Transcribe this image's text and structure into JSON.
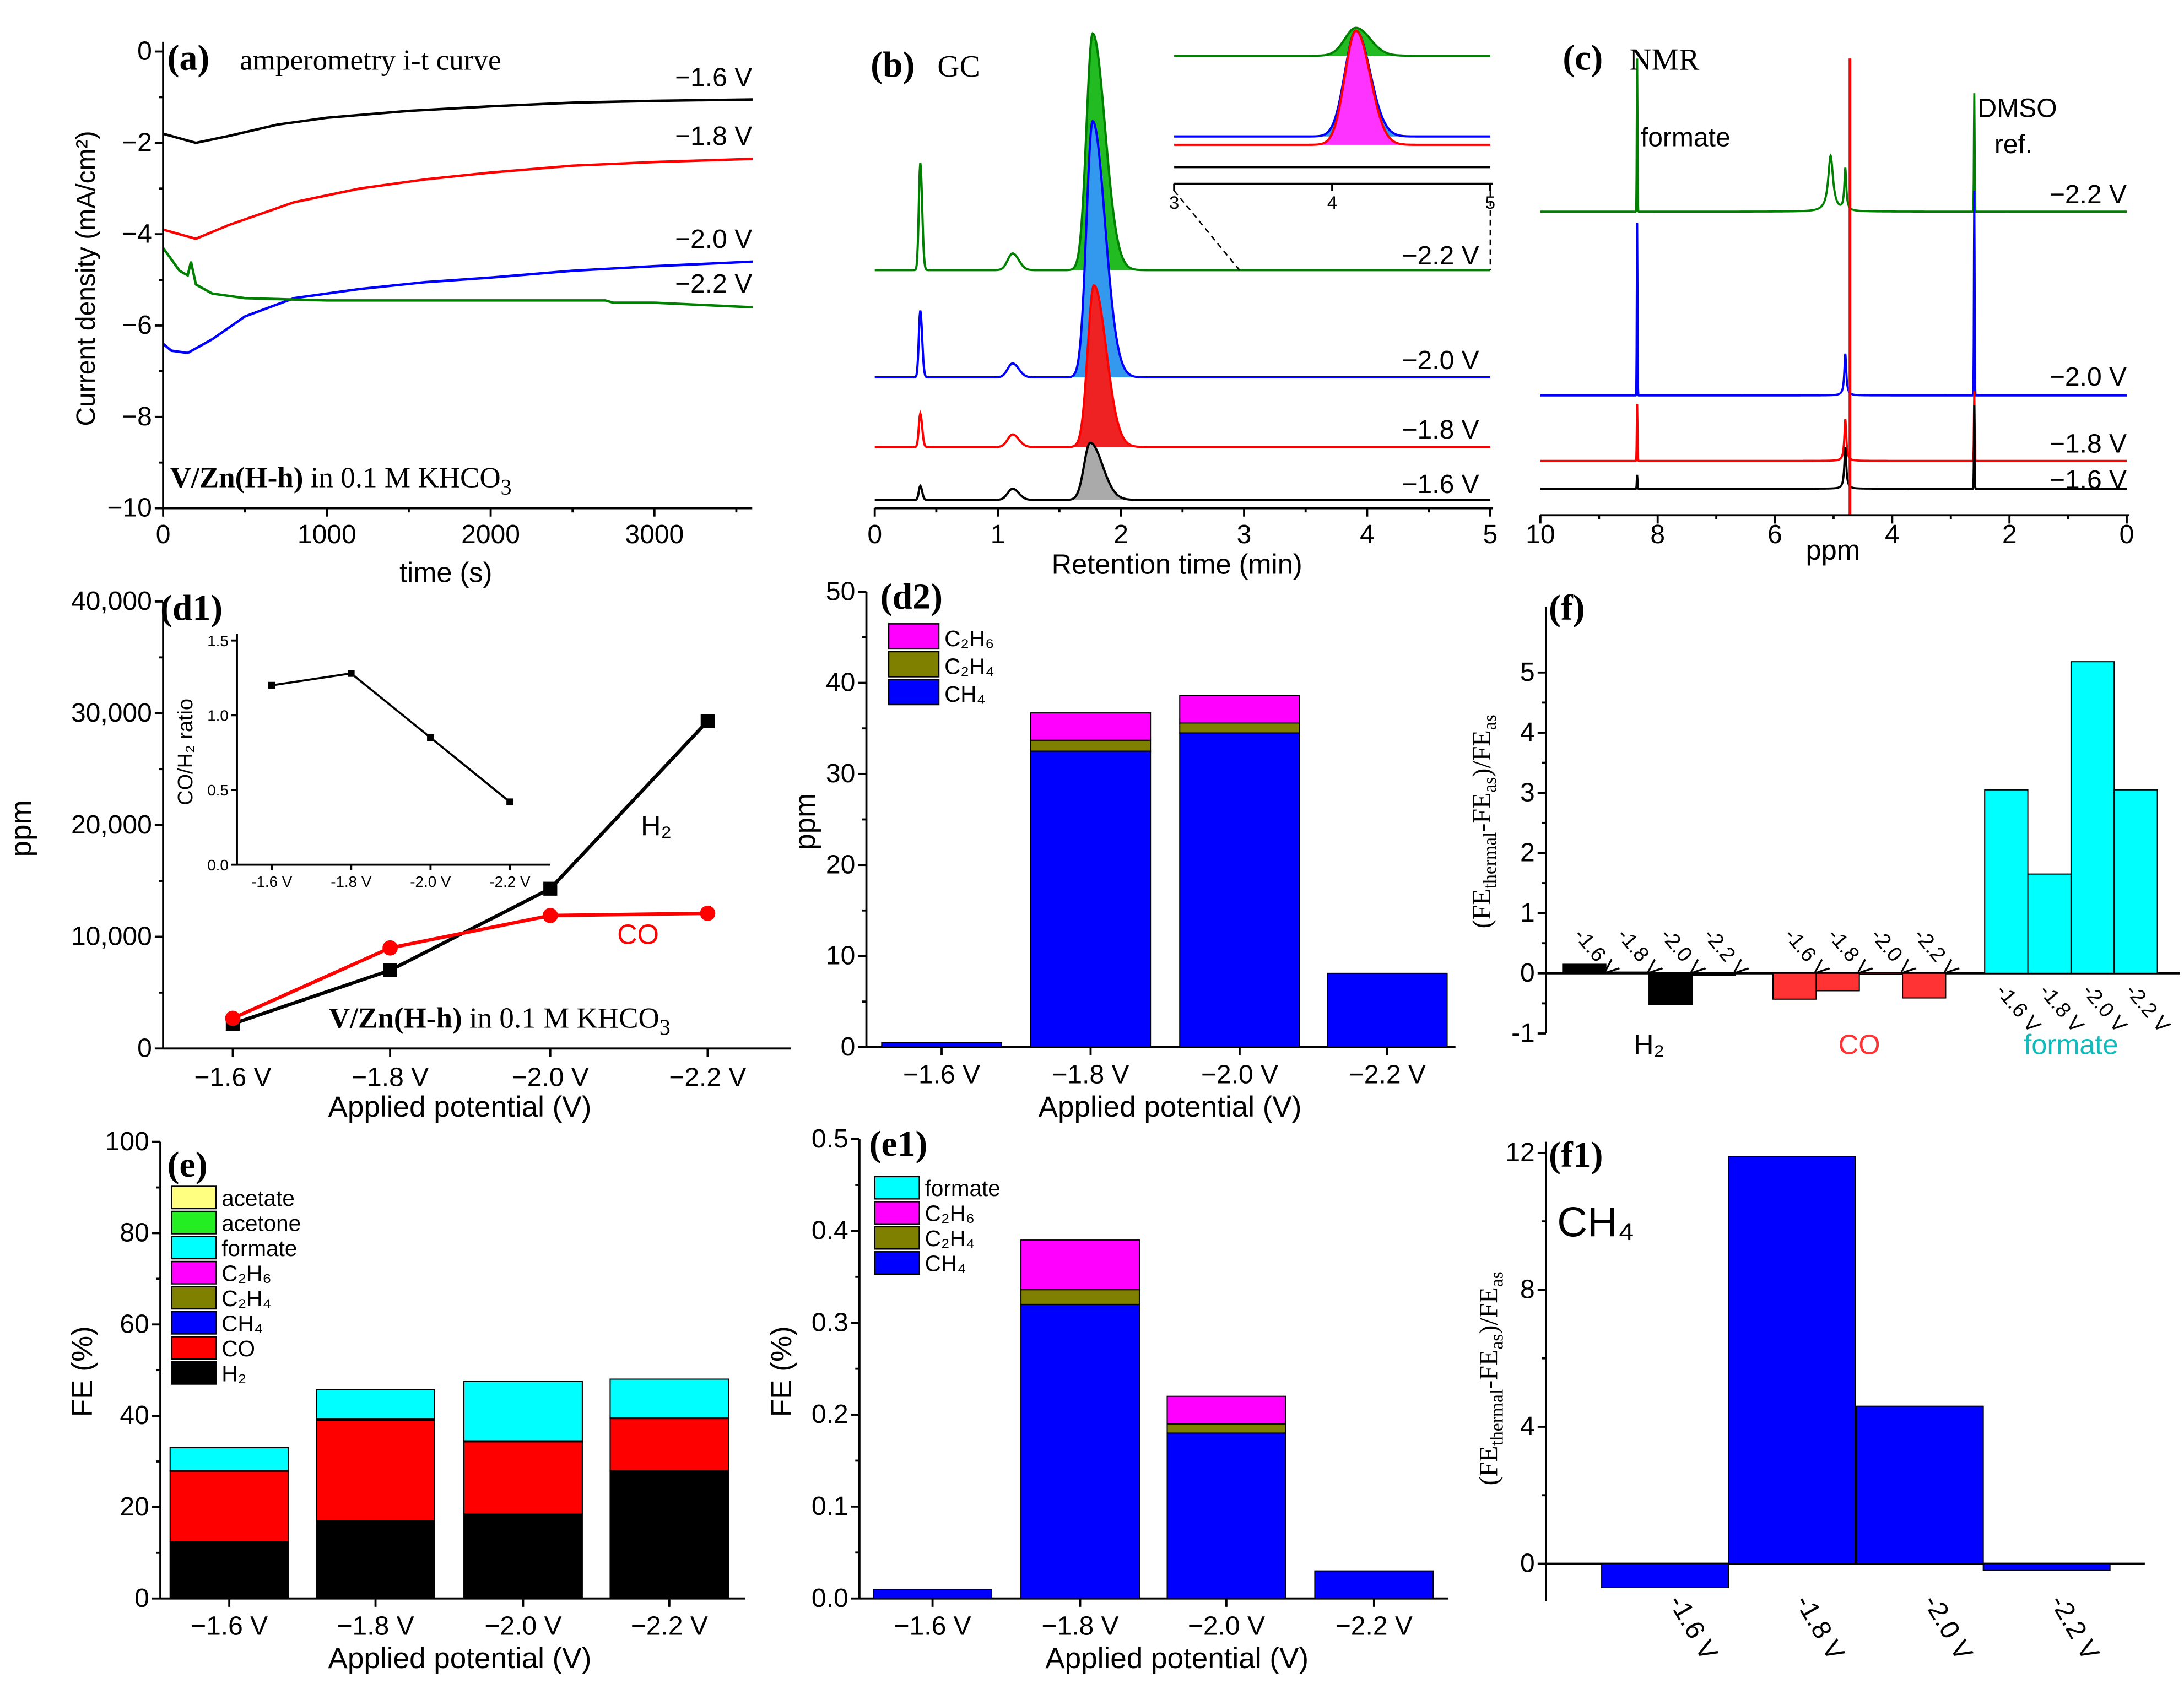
{
  "chart_data": [
    {
      "id": "a",
      "type": "line",
      "panel_label": "(a)",
      "title": "amperometry i-t curve",
      "xlabel": "time (s)",
      "ylabel": "Current density (mA/cm²)",
      "xlim": [
        0,
        3600
      ],
      "ylim": [
        -10,
        0
      ],
      "xticks": [
        0,
        1000,
        2000,
        3000
      ],
      "yticks": [
        0,
        -2,
        -4,
        -6,
        -8,
        -10
      ],
      "sample": {
        "bold": "V/Zn(H-h)",
        "text": " in 0.1 M KHCO",
        "sub": "3"
      },
      "series": [
        {
          "name": "−1.6 V",
          "color": "#000000",
          "x": [
            0,
            100,
            200,
            400,
            700,
            1000,
            1500,
            2000,
            2500,
            3000,
            3600
          ],
          "y": [
            -1.8,
            -1.9,
            -2.0,
            -1.85,
            -1.6,
            -1.45,
            -1.3,
            -1.2,
            -1.12,
            -1.08,
            -1.05
          ]
        },
        {
          "name": "−1.8 V",
          "color": "#ff0000",
          "x": [
            0,
            100,
            200,
            400,
            800,
            1200,
            1600,
            2000,
            2500,
            3000,
            3600
          ],
          "y": [
            -3.9,
            -4.0,
            -4.1,
            -3.8,
            -3.3,
            -3.0,
            -2.8,
            -2.65,
            -2.5,
            -2.42,
            -2.35
          ]
        },
        {
          "name": "−2.0 V",
          "color": "#0000ff",
          "x": [
            0,
            50,
            150,
            300,
            500,
            800,
            1200,
            1600,
            2000,
            2500,
            3000,
            3600
          ],
          "y": [
            -6.4,
            -6.55,
            -6.6,
            -6.3,
            -5.8,
            -5.4,
            -5.2,
            -5.05,
            -4.95,
            -4.8,
            -4.7,
            -4.6
          ]
        },
        {
          "name": "−2.2 V",
          "color": "#008000",
          "x": [
            0,
            100,
            150,
            170,
            200,
            300,
            500,
            1000,
            2000,
            2700,
            2750,
            3000,
            3600
          ],
          "y": [
            -4.3,
            -4.8,
            -4.9,
            -4.6,
            -5.1,
            -5.3,
            -5.4,
            -5.45,
            -5.45,
            -5.45,
            -5.5,
            -5.5,
            -5.6
          ]
        }
      ]
    },
    {
      "id": "b",
      "type": "line",
      "panel_label": "(b)",
      "title": "GC",
      "xlabel": "Retention time (min)",
      "xlim": [
        0,
        5
      ],
      "xticks": [
        0,
        1,
        2,
        3,
        4,
        5
      ],
      "inset": {
        "xlim": [
          3,
          5
        ],
        "xticks": [
          3,
          4,
          5
        ]
      },
      "series": [
        {
          "name": "−2.2 V",
          "color": "#008000",
          "fill": "#22bb22",
          "peaks_min": [
            0.37,
            1.12,
            1.77
          ],
          "intensity_au": [
            77,
            12,
            170
          ],
          "inset_peak_au": 20,
          "inset_fill": "#22bb22"
        },
        {
          "name": "−2.0 V",
          "color": "#0000ff",
          "fill": "#3399ee",
          "peaks_min": [
            0.37,
            1.12,
            1.77
          ],
          "intensity_au": [
            48,
            10,
            184
          ],
          "inset_peak_au": 76,
          "inset_fill": "#3399ee"
        },
        {
          "name": "−1.8 V",
          "color": "#ff0000",
          "fill": "#ee2222",
          "peaks_min": [
            0.37,
            1.12,
            1.78
          ],
          "intensity_au": [
            24,
            9,
            116
          ],
          "inset_peak_au": 82,
          "inset_fill": "#ff33ff"
        },
        {
          "name": "−1.6 V",
          "color": "#000000",
          "fill": "#aaaaaa",
          "peaks_min": [
            0.37,
            1.12,
            1.75
          ],
          "intensity_au": [
            10,
            8,
            41
          ],
          "inset_peak_au": 0,
          "inset_fill": "#aaaaaa"
        }
      ]
    },
    {
      "id": "c",
      "type": "line",
      "panel_label": "(c)",
      "title": "NMR",
      "xlabel": "ppm",
      "xlim": [
        10,
        0
      ],
      "xticks": [
        10,
        8,
        6,
        4,
        2,
        0
      ],
      "annotations": {
        "formate": "formate",
        "dmso1": "DMSO",
        "dmso2": "ref."
      },
      "peak_positions_ppm": {
        "formate": 8.35,
        "water": 4.8,
        "dmso": 2.6
      },
      "series": [
        {
          "name": "−2.2 V",
          "color": "#008000",
          "formate_au": 110,
          "dmso_au": 85
        },
        {
          "name": "−2.0 V",
          "color": "#0000ff",
          "formate_au": 124,
          "dmso_au": 147
        },
        {
          "name": "−1.8 V",
          "color": "#ff0000",
          "formate_au": 41,
          "dmso_au": 50
        },
        {
          "name": "−1.6 V",
          "color": "#000000",
          "formate_au": 10,
          "dmso_au": 60
        }
      ]
    },
    {
      "id": "d1",
      "type": "line",
      "panel_label": "(d1)",
      "xlabel": "Applied potential (V)",
      "ylabel": "ppm",
      "categories": [
        "−1.6 V",
        "−1.8 V",
        "−2.0 V",
        "−2.2 V"
      ],
      "ylim": [
        0,
        40000
      ],
      "yticks": [
        0,
        10000,
        20000,
        30000,
        40000
      ],
      "ytick_labels": [
        "0",
        "10,000",
        "20,000",
        "30,000",
        "40,000"
      ],
      "sample": {
        "bold": "V/Zn(H-h)",
        "text": " in 0.1 M KHCO",
        "sub": "3"
      },
      "series": [
        {
          "name": "H₂",
          "color": "#000000",
          "marker": "square",
          "values": [
            2200,
            7000,
            14300,
            29300
          ]
        },
        {
          "name": "CO",
          "color": "#ff0000",
          "marker": "circle",
          "values": [
            2700,
            9000,
            11900,
            12100
          ]
        }
      ],
      "inset": {
        "type": "line",
        "ylabel": "CO/H₂ ratio",
        "ylim": [
          0,
          1.5
        ],
        "yticks": [
          "0.0",
          "0.5",
          "1.0",
          "1.5"
        ],
        "categories": [
          "-1.6 V",
          "-1.8 V",
          "-2.0 V",
          "-2.2 V"
        ],
        "values": [
          1.2,
          1.28,
          0.85,
          0.42
        ]
      }
    },
    {
      "id": "d2",
      "type": "bar",
      "stacked": true,
      "panel_label": "(d2)",
      "xlabel": "Applied potential (V)",
      "ylabel": "ppm",
      "categories": [
        "−1.6 V",
        "−1.8 V",
        "−2.0 V",
        "−2.2 V"
      ],
      "ylim": [
        0,
        50
      ],
      "yticks": [
        0,
        10,
        20,
        30,
        40,
        50
      ],
      "series": [
        {
          "name": "CH₄",
          "color": "#0000ff",
          "values": [
            0.5,
            32.5,
            34.5,
            8.1
          ]
        },
        {
          "name": "C₂H₄",
          "color": "#808000",
          "values": [
            0,
            1.2,
            1.1,
            0
          ]
        },
        {
          "name": "C₂H₆",
          "color": "#ff00ff",
          "values": [
            0,
            3.0,
            3.0,
            0
          ]
        }
      ],
      "legend": "top-left"
    },
    {
      "id": "f",
      "type": "bar",
      "panel_label": "(f)",
      "ylabel_parts": [
        "(FE",
        "thermal",
        "-FE",
        "as",
        ")/FE",
        "as"
      ],
      "ylim": [
        -1,
        5.5
      ],
      "yticks": [
        -1,
        0,
        1,
        2,
        3,
        4,
        5
      ],
      "categories": [
        "-1.6 V",
        "-1.8 V",
        "-2.0 V",
        "-2.2 V"
      ],
      "series": [
        {
          "name": "H₂",
          "color": "#000000",
          "values": [
            0.15,
            0.02,
            -0.52,
            -0.03
          ]
        },
        {
          "name": "CO",
          "color": "#ff3333",
          "values": [
            -0.43,
            -0.29,
            0.01,
            -0.41
          ]
        },
        {
          "name": "formate",
          "color": "#00ffff",
          "label_color": "#11bbbb",
          "values": [
            3.05,
            1.65,
            5.18,
            3.05
          ]
        }
      ]
    },
    {
      "id": "e",
      "type": "bar",
      "stacked": true,
      "panel_label": "(e)",
      "xlabel": "Applied potential (V)",
      "ylabel": "FE (%)",
      "categories": [
        "−1.6 V",
        "−1.8 V",
        "−2.0 V",
        "−2.2 V"
      ],
      "ylim": [
        0,
        100
      ],
      "yticks": [
        0,
        20,
        40,
        60,
        80,
        100
      ],
      "series": [
        {
          "name": "H₂",
          "color": "#000000",
          "values": [
            12.5,
            17,
            18.5,
            28
          ]
        },
        {
          "name": "CO",
          "color": "#ff0000",
          "values": [
            15.5,
            22,
            15.8,
            11.5
          ]
        },
        {
          "name": "CH₄",
          "color": "#0000ff",
          "values": [
            0.01,
            0.32,
            0.18,
            0.03
          ]
        },
        {
          "name": "C₂H₄",
          "color": "#808000",
          "values": [
            0,
            0.016,
            0.01,
            0
          ]
        },
        {
          "name": "C₂H₆",
          "color": "#ff00ff",
          "values": [
            0,
            0.054,
            0.03,
            0
          ]
        },
        {
          "name": "formate",
          "color": "#00ffff",
          "values": [
            5,
            6.3,
            13,
            8.5
          ]
        },
        {
          "name": "acetone",
          "color": "#22ee22",
          "values": [
            0,
            0,
            0,
            0
          ]
        },
        {
          "name": "acetate",
          "color": "#ffff80",
          "values": [
            0,
            0,
            0,
            0
          ]
        }
      ],
      "legend": "top-left"
    },
    {
      "id": "e1",
      "type": "bar",
      "stacked": true,
      "panel_label": "(e1)",
      "xlabel": "Applied potential (V)",
      "ylabel": "FE (%)",
      "categories": [
        "−1.6 V",
        "−1.8 V",
        "−2.0 V",
        "−2.2 V"
      ],
      "ylim": [
        0,
        0.5
      ],
      "yticks": [
        "0.0",
        "0.1",
        "0.2",
        "0.3",
        "0.4",
        "0.5"
      ],
      "series": [
        {
          "name": "CH₄",
          "color": "#0000ff",
          "values": [
            0.01,
            0.32,
            0.18,
            0.03
          ]
        },
        {
          "name": "C₂H₄",
          "color": "#808000",
          "values": [
            0,
            0.016,
            0.01,
            0
          ]
        },
        {
          "name": "C₂H₆",
          "color": "#ff00ff",
          "values": [
            0,
            0.054,
            0.03,
            0
          ]
        },
        {
          "name": "formate",
          "color": "#00ffff",
          "values": [
            0,
            0,
            0,
            0
          ]
        }
      ],
      "legend": "top-left"
    },
    {
      "id": "f1",
      "type": "bar",
      "panel_label": "(f1)",
      "annotation": "CH₄",
      "ylabel_parts": [
        "(FE",
        "thermal",
        "-FE",
        "as",
        ")/FE",
        "as"
      ],
      "ylim": [
        -1.5,
        12
      ],
      "yticks": [
        0,
        4,
        8,
        12
      ],
      "categories": [
        "-1.6 V",
        "-1.8 V",
        "-2.0 V",
        "-2.2 V"
      ],
      "series": [
        {
          "name": "CH₄",
          "color": "#0000ff",
          "values": [
            -0.7,
            11.9,
            4.6,
            -0.2
          ]
        }
      ]
    }
  ]
}
